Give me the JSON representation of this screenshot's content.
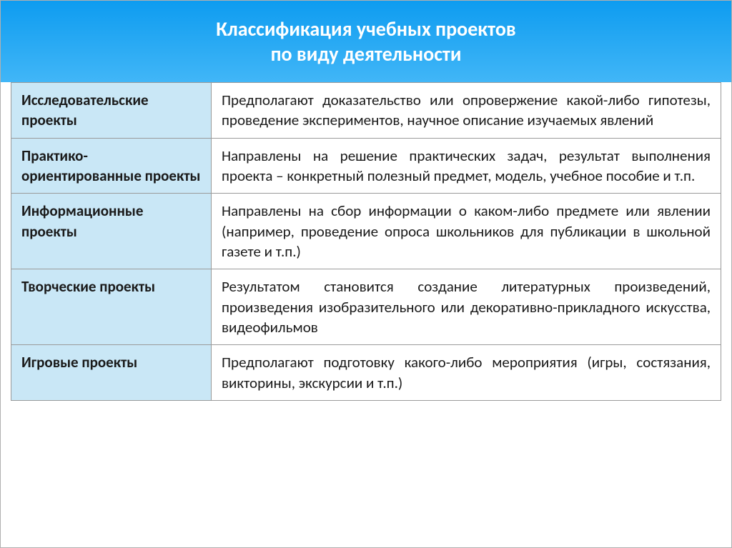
{
  "title": {
    "line1": "Классификация учебных проектов",
    "line2": "по виду деятельности"
  },
  "header": {
    "bg_gradient_top": "#0e9cf0",
    "bg_gradient_bottom": "#41b6f7",
    "text_color": "#ffffff",
    "title_fontsize": 28,
    "title_fontweight": "bold"
  },
  "table": {
    "label_bg": "#c9e7f6",
    "desc_bg": "#ffffff",
    "border_color": "#9a9a9a",
    "label_col_width": 280,
    "cell_fontsize": 21,
    "label_fontweight": "bold",
    "rows": [
      {
        "label": "Исследовательские проекты",
        "desc": "Предполагают доказательство или опровержение какой-либо гипотезы, проведение экспериментов, научное описание изучаемых явлений"
      },
      {
        "label": "Практико-ориентированные проекты",
        "desc": "Направлены на решение практических задач, результат выполнения проекта – конкретный полезный предмет, модель, учебное пособие и т.п."
      },
      {
        "label": "Информационные проекты",
        "desc": "Направлены на сбор информации о каком-либо предмете или явлении (например, проведение опроса школьников для публикации в школьной газете и т.п.)"
      },
      {
        "label": "Творческие проекты",
        "desc": "Результатом становится создание литературных произведений, произведения изобразительного или декоративно-прикладного искусства, видеофильмов"
      },
      {
        "label": "Игровые проекты",
        "desc": "Предполагают подготовку какого-либо мероприятия (игры, состязания, викторины, экскурсии и т.п.)"
      }
    ]
  }
}
